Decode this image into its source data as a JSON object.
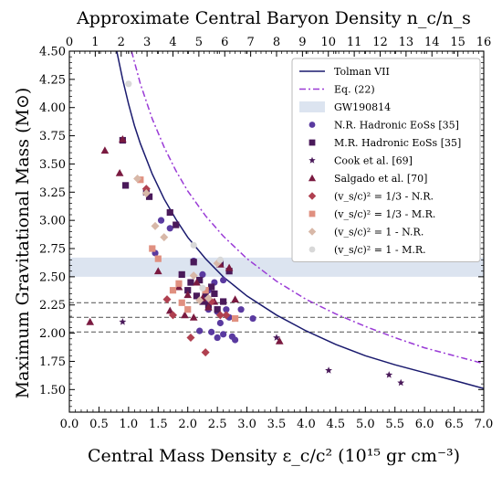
{
  "chart_data": {
    "type": "scatter",
    "xlabel": "Central Mass Density ε_c/c² (10¹⁵ gr cm⁻³)",
    "ylabel": "Maximum Gravitational Mass (M⊙)",
    "top_xlabel": "Approximate Central Baryon Density n_c/n_s",
    "xlim": [
      0,
      7
    ],
    "ylim": [
      1.3,
      4.5
    ],
    "top_xlim": [
      0,
      16
    ],
    "x_ticks": [
      "0.0",
      "0.5",
      "1.0",
      "1.5",
      "2.0",
      "2.5",
      "3.0",
      "3.5",
      "4.0",
      "4.5",
      "5.0",
      "5.5",
      "6.0",
      "6.5",
      "7.0"
    ],
    "y_ticks": [
      "1.50",
      "1.75",
      "2.00",
      "2.25",
      "2.50",
      "2.75",
      "3.00",
      "3.25",
      "3.50",
      "3.75",
      "4.00",
      "4.25",
      "4.50"
    ],
    "top_x_ticks": [
      "0",
      "1",
      "2",
      "3",
      "4",
      "5",
      "6",
      "7",
      "8",
      "9",
      "10",
      "11",
      "12",
      "13",
      "14",
      "15",
      "16"
    ],
    "legend_position": "top-right",
    "band": {
      "name": "GW190814",
      "y": [
        2.5,
        2.67
      ],
      "color": "#dce4f0"
    },
    "hlines": [
      2.01,
      2.14,
      2.27
    ],
    "curves": [
      {
        "name": "Tolman VII",
        "color": "#1a1a6e",
        "style": "solid",
        "x": [
          0.8,
          0.9,
          1.0,
          1.1,
          1.2,
          1.4,
          1.6,
          1.8,
          2.0,
          2.3,
          2.6,
          3.0,
          3.5,
          4.0,
          4.5,
          5.0,
          5.5,
          6.0,
          6.5,
          7.0
        ],
        "y": [
          4.5,
          4.25,
          4.03,
          3.84,
          3.68,
          3.41,
          3.19,
          3.01,
          2.85,
          2.66,
          2.5,
          2.33,
          2.16,
          2.02,
          1.9,
          1.8,
          1.72,
          1.65,
          1.58,
          1.51
        ]
      },
      {
        "name": "Eq. (22)",
        "color": "#9a3bd6",
        "style": "dashdot",
        "x": [
          1.05,
          1.2,
          1.4,
          1.6,
          1.8,
          2.0,
          2.3,
          2.6,
          3.0,
          3.5,
          4.0,
          4.5,
          5.0,
          5.5,
          6.0,
          6.5,
          7.0
        ],
        "y": [
          4.5,
          4.21,
          3.9,
          3.65,
          3.44,
          3.26,
          3.04,
          2.86,
          2.66,
          2.46,
          2.3,
          2.17,
          2.06,
          1.96,
          1.87,
          1.8,
          1.73
        ]
      }
    ],
    "series": [
      {
        "name": "N.R. Hadronic EoSs [35]",
        "marker": "circle",
        "color": "#5a3aa0",
        "x": [
          1.45,
          1.55,
          1.7,
          2.1,
          2.25,
          2.3,
          2.35,
          2.4,
          2.45,
          2.5,
          2.55,
          2.6,
          2.65,
          2.7,
          2.75,
          2.8,
          2.9,
          3.1,
          2.35,
          2.5,
          2.6,
          2.2
        ],
        "y": [
          2.71,
          3.0,
          2.93,
          2.64,
          2.52,
          2.3,
          2.21,
          2.01,
          2.45,
          2.19,
          2.09,
          1.99,
          2.21,
          2.14,
          1.97,
          1.94,
          2.21,
          2.13,
          2.38,
          1.96,
          2.47,
          2.02
        ]
      },
      {
        "name": "M.R. Hadronic EoSs [35]",
        "marker": "square",
        "color": "#4a1a5a",
        "x": [
          0.9,
          0.95,
          1.3,
          1.35,
          1.7,
          1.8,
          1.9,
          2.0,
          2.05,
          2.1,
          2.15,
          2.25,
          2.3,
          2.4,
          2.45,
          2.55,
          2.6,
          2.7,
          2.2,
          2.35,
          2.5
        ],
        "y": [
          3.71,
          3.31,
          3.25,
          3.21,
          3.07,
          2.96,
          2.52,
          2.38,
          2.45,
          2.63,
          2.33,
          2.28,
          2.35,
          2.41,
          2.35,
          2.62,
          2.28,
          2.55,
          2.47,
          2.25,
          2.21
        ]
      },
      {
        "name": "Cook et al. [69]",
        "marker": "star",
        "color": "#4a1a5a",
        "x": [
          0.9,
          3.5,
          4.38,
          5.4,
          5.6
        ],
        "y": [
          2.1,
          1.96,
          1.67,
          1.63,
          1.56
        ]
      },
      {
        "name": "Salgado et al. [70]",
        "marker": "triangle",
        "color": "#7a1a40",
        "x": [
          0.35,
          0.6,
          0.85,
          0.9,
          1.5,
          1.7,
          1.85,
          2.0,
          2.1,
          2.15,
          2.25,
          2.35,
          2.45,
          2.55,
          2.7,
          2.8,
          3.55,
          1.95
        ],
        "y": [
          2.1,
          3.62,
          3.42,
          3.72,
          2.55,
          2.2,
          2.41,
          2.34,
          2.14,
          2.45,
          2.31,
          2.23,
          2.28,
          2.61,
          2.58,
          2.3,
          1.93,
          2.16
        ]
      },
      {
        "name": "(v_s/c)² = 1/3 - N.R.",
        "marker": "diamond",
        "color": "#b04050",
        "x": [
          1.3,
          1.65,
          1.75,
          2.05,
          2.3,
          2.4,
          2.55,
          2.65
        ],
        "y": [
          3.28,
          2.3,
          2.16,
          1.96,
          1.83,
          2.28,
          2.16,
          2.16
        ]
      },
      {
        "name": "(v_s/c)² = 1/3 - M.R.",
        "marker": "square",
        "color": "#e09080",
        "x": [
          1.2,
          1.4,
          1.5,
          1.75,
          1.85,
          1.9,
          2.0,
          2.3,
          2.8
        ],
        "y": [
          3.36,
          2.75,
          2.66,
          2.38,
          2.44,
          2.27,
          2.21,
          2.38,
          2.13
        ]
      },
      {
        "name": "(v_s/c)² = 1 - N.R.",
        "marker": "diamond",
        "color": "#d8b8a8",
        "x": [
          1.15,
          1.3,
          1.45,
          1.6,
          2.1,
          2.2,
          2.35,
          2.5
        ],
        "y": [
          3.37,
          3.24,
          2.95,
          2.85,
          2.51,
          2.29,
          2.31,
          2.62
        ]
      },
      {
        "name": "(v_s/c)² = 1 - M.R.",
        "marker": "circle",
        "color": "#d8d8d8",
        "x": [
          1.0,
          2.1,
          2.25,
          2.55
        ],
        "y": [
          4.21,
          2.78,
          2.4,
          2.65
        ]
      }
    ],
    "legend": [
      {
        "label": "Tolman VII",
        "kind": "line",
        "color": "#1a1a6e"
      },
      {
        "label": "Eq. (22)",
        "kind": "dashdot",
        "color": "#9a3bd6"
      },
      {
        "label": "GW190814",
        "kind": "band",
        "color": "#dce4f0"
      },
      {
        "label": "N.R. Hadronic EoSs [35]",
        "kind": "circle",
        "color": "#5a3aa0"
      },
      {
        "label": "M.R. Hadronic EoSs [35]",
        "kind": "square",
        "color": "#4a1a5a"
      },
      {
        "label": "Cook et al. [69]",
        "kind": "star",
        "color": "#4a1a5a"
      },
      {
        "label": "Salgado et al. [70]",
        "kind": "triangle",
        "color": "#7a1a40"
      },
      {
        "label": "(v_s/c)² = 1/3 - N.R.",
        "kind": "diamond",
        "color": "#b04050"
      },
      {
        "label": "(v_s/c)² = 1/3 - M.R.",
        "kind": "square",
        "color": "#e09080"
      },
      {
        "label": "(v_s/c)² = 1 - N.R.",
        "kind": "diamond",
        "color": "#d8b8a8"
      },
      {
        "label": "(v_s/c)² = 1 - M.R.",
        "kind": "circle",
        "color": "#d8d8d8"
      }
    ]
  }
}
